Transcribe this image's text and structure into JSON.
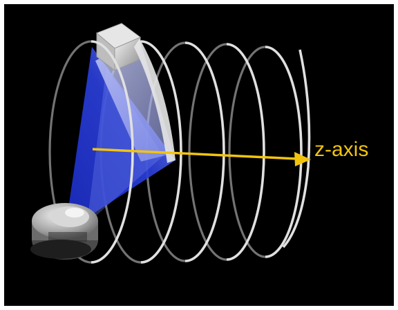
{
  "axis": {
    "label": "z-axis",
    "color": "#f2c40e"
  },
  "colors": {
    "background": "#000000",
    "helix": "#d8d8d8",
    "beam": "#2a3ed8",
    "beam_highlight": "#7f8ff0"
  },
  "objects": {
    "detector": "flat-panel-detector",
    "source": "x-ray-tube",
    "trajectory": "helical-path"
  }
}
